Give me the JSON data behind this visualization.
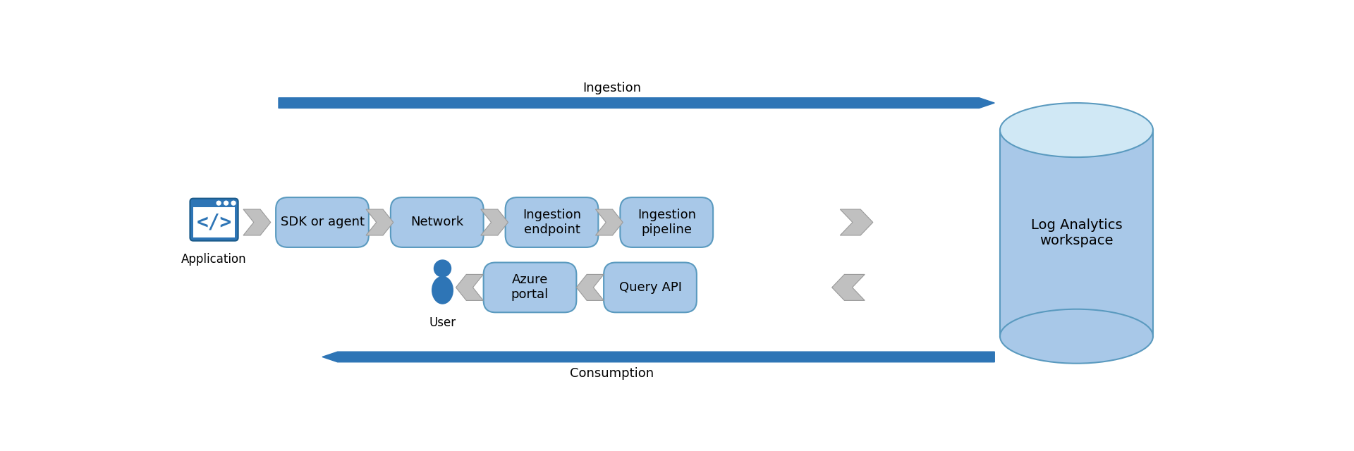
{
  "bg_color": "#ffffff",
  "box_color": "#a8c8e8",
  "box_edge_color": "#5a9abf",
  "arrow_gray": "#b8b8b8",
  "dark_arrow_color": "#2e75b6",
  "user_color": "#2e75b6",
  "app_icon_bg": "#2e75b6",
  "cylinder_body_color": "#a8c8e8",
  "cylinder_top_color": "#d0e8f5",
  "cylinder_edge_color": "#5a9abf",
  "ingestion_label": "Ingestion",
  "consumption_label": "Consumption",
  "top_boxes": [
    "SDK or agent",
    "Network",
    "Ingestion\nendpoint",
    "Ingestion\npipeline"
  ],
  "bottom_boxes": [
    "Azure\nportal",
    "Query API"
  ],
  "app_label": "Application",
  "user_label": "User",
  "workspace_label": "Log Analytics\nworkspace",
  "font_size": 13,
  "label_font_size": 12
}
